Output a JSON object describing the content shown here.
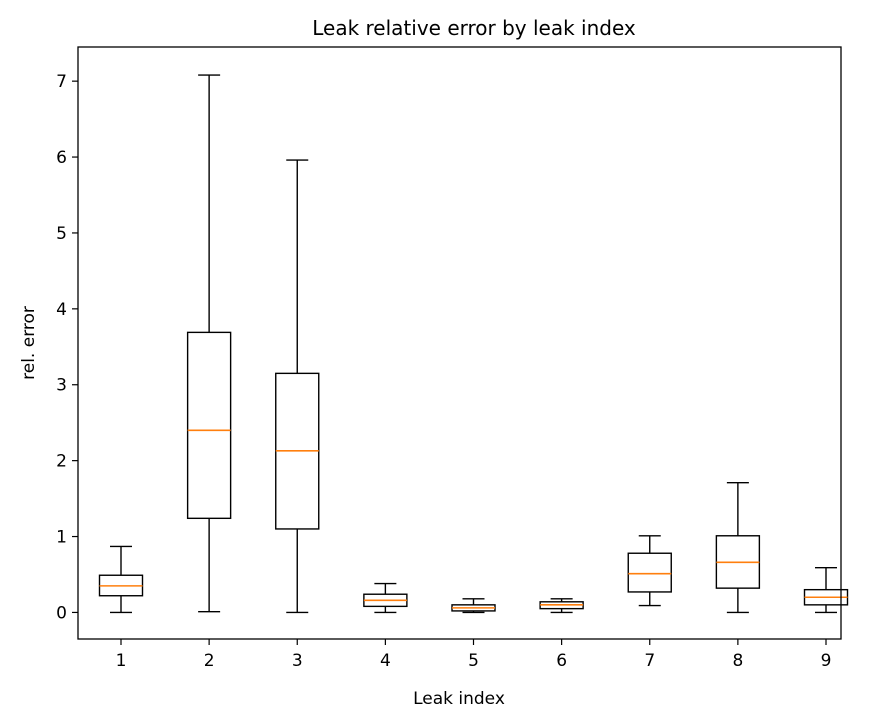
{
  "chart_data": {
    "type": "box",
    "title": "Leak relative error by leak index",
    "xlabel": "Leak index",
    "ylabel": "rel. error",
    "ylim": [
      -0.35,
      7.45
    ],
    "yticks": [
      0,
      1,
      2,
      3,
      4,
      5,
      6,
      7
    ],
    "categories": [
      "1",
      "2",
      "3",
      "4",
      "5",
      "6",
      "7",
      "8",
      "9"
    ],
    "boxes": [
      {
        "whislo": 0.0,
        "q1": 0.22,
        "med": 0.35,
        "q3": 0.49,
        "whishi": 0.87
      },
      {
        "whislo": 0.01,
        "q1": 1.24,
        "med": 2.4,
        "q3": 3.69,
        "whishi": 7.08
      },
      {
        "whislo": 0.0,
        "q1": 1.1,
        "med": 2.13,
        "q3": 3.15,
        "whishi": 5.96
      },
      {
        "whislo": 0.0,
        "q1": 0.08,
        "med": 0.16,
        "q3": 0.24,
        "whishi": 0.38
      },
      {
        "whislo": 0.0,
        "q1": 0.02,
        "med": 0.06,
        "q3": 0.1,
        "whishi": 0.18
      },
      {
        "whislo": 0.0,
        "q1": 0.05,
        "med": 0.1,
        "q3": 0.14,
        "whishi": 0.18
      },
      {
        "whislo": 0.09,
        "q1": 0.27,
        "med": 0.51,
        "q3": 0.78,
        "whishi": 1.01
      },
      {
        "whislo": 0.0,
        "q1": 0.32,
        "med": 0.66,
        "q3": 1.01,
        "whishi": 1.71
      },
      {
        "whislo": 0.0,
        "q1": 0.1,
        "med": 0.2,
        "q3": 0.3,
        "whishi": 0.59
      }
    ],
    "grid": false,
    "colors": {
      "box": "#000000",
      "median": "#ff7f0e",
      "axis": "#000000"
    }
  }
}
